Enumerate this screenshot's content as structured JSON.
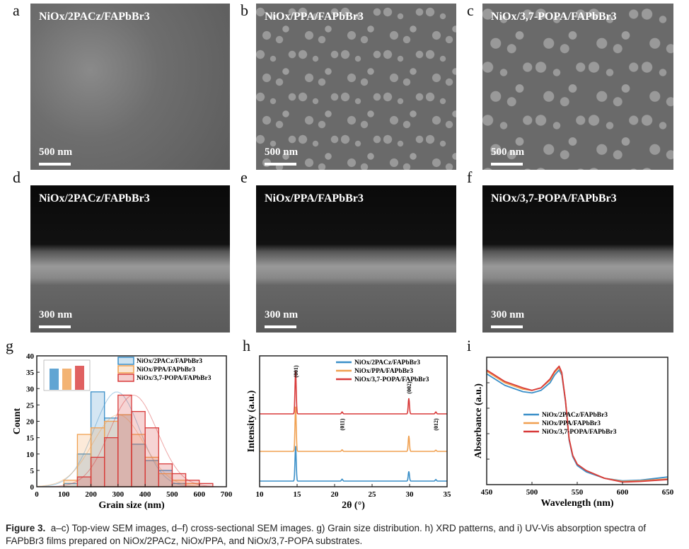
{
  "panels": {
    "a": {
      "letter": "a",
      "title": "NiOx/2PACz/FAPbBr3",
      "scale": "500 nm"
    },
    "b": {
      "letter": "b",
      "title": "NiOx/PPA/FAPbBr3",
      "scale": "500 nm"
    },
    "c": {
      "letter": "c",
      "title": "NiOx/3,7-POPA/FAPbBr3",
      "scale": "500 nm"
    },
    "d": {
      "letter": "d",
      "title": "NiOx/2PACz/FAPbBr3",
      "scale": "300 nm"
    },
    "e": {
      "letter": "e",
      "title": "NiOx/PPA/FAPbBr3",
      "scale": "300 nm"
    },
    "f": {
      "letter": "f",
      "title": "NiOx/3,7-POPA/FAPbBr3",
      "scale": "300 nm"
    },
    "g": {
      "letter": "g"
    },
    "h": {
      "letter": "h"
    },
    "i": {
      "letter": "i"
    }
  },
  "colors": {
    "blue": "#3a8fc8",
    "orange": "#f0a050",
    "red": "#d83a3a"
  },
  "chart_data": [
    {
      "type": "bar",
      "panel": "g",
      "xlabel": "Grain size (nm)",
      "ylabel": "Count",
      "xlim": [
        0,
        700
      ],
      "ylim": [
        0,
        40
      ],
      "xticks": [
        0,
        100,
        200,
        300,
        400,
        500,
        600,
        700
      ],
      "yticks": [
        0,
        5,
        10,
        15,
        20,
        25,
        30,
        35,
        40
      ],
      "bins": [
        100,
        150,
        200,
        250,
        300,
        350,
        400,
        450,
        500,
        550,
        600
      ],
      "bin_width": 50,
      "series": [
        {
          "name": "NiOx/2PACz/FAPbBr3",
          "color": "#3a8fc8",
          "values": [
            1,
            10,
            29,
            21,
            22,
            13,
            8,
            5,
            1,
            0,
            0
          ]
        },
        {
          "name": "NiOx/PPA/FAPbBr3",
          "color": "#f0a050",
          "values": [
            2,
            16,
            18,
            20,
            22,
            16,
            9,
            4,
            2,
            1,
            0
          ]
        },
        {
          "name": "NiOx/3,7-POPA/FAPbBr3",
          "color": "#d83a3a",
          "values": [
            0,
            3,
            9,
            15,
            28,
            23,
            18,
            7,
            4,
            2,
            1
          ]
        }
      ],
      "legend": "top-right",
      "inset": "bar chart of mean grain size (three bars)"
    },
    {
      "type": "line",
      "panel": "h",
      "xlabel": "2θ (°)",
      "ylabel": "Intensity (a.u.)",
      "xlim": [
        10,
        35
      ],
      "xticks": [
        10,
        15,
        20,
        25,
        30,
        35
      ],
      "peaks": [
        {
          "label": "(001)",
          "x": 14.8
        },
        {
          "label": "(011)",
          "x": 21.0
        },
        {
          "label": "(002)",
          "x": 29.9
        },
        {
          "label": "(012)",
          "x": 33.5
        }
      ],
      "series": [
        {
          "name": "NiOx/2PACz/FAPbBr3",
          "color": "#3a8fc8",
          "offset": 0,
          "heights": [
            0.9,
            0.05,
            0.25,
            0.04
          ]
        },
        {
          "name": "NiOx/PPA/FAPbBr3",
          "color": "#f0a050",
          "offset": 1,
          "heights": [
            1.15,
            0.04,
            0.4,
            0.03
          ]
        },
        {
          "name": "NiOx/3,7-POPA/FAPbBr3",
          "color": "#d83a3a",
          "offset": 2,
          "heights": [
            1.1,
            0.05,
            0.4,
            0.05
          ]
        }
      ],
      "legend": "top-right"
    },
    {
      "type": "line",
      "panel": "i",
      "xlabel": "Wavelength (nm)",
      "ylabel": "Absorbance (a.u.)",
      "xlim": [
        450,
        650
      ],
      "ylim": [
        0,
        1
      ],
      "xticks": [
        450,
        500,
        550,
        600,
        650
      ],
      "x": [
        450,
        470,
        490,
        500,
        510,
        520,
        525,
        530,
        533,
        537,
        541,
        545,
        550,
        560,
        580,
        600,
        620,
        650
      ],
      "series": [
        {
          "name": "NiOx/2PACz/FAPbBr3",
          "color": "#3a8fc8",
          "values": [
            0.87,
            0.78,
            0.73,
            0.72,
            0.74,
            0.8,
            0.86,
            0.9,
            0.86,
            0.65,
            0.35,
            0.22,
            0.15,
            0.1,
            0.05,
            0.03,
            0.035,
            0.06
          ]
        },
        {
          "name": "NiOx/PPA/FAPbBr3",
          "color": "#f0a050",
          "values": [
            0.89,
            0.8,
            0.75,
            0.74,
            0.76,
            0.82,
            0.88,
            0.92,
            0.87,
            0.66,
            0.36,
            0.23,
            0.16,
            0.11,
            0.05,
            0.025,
            0.03,
            0.045
          ]
        },
        {
          "name": "NiOx/3,7-POPA/FAPbBr3",
          "color": "#d83a3a",
          "values": [
            0.9,
            0.81,
            0.76,
            0.74,
            0.76,
            0.83,
            0.89,
            0.93,
            0.88,
            0.66,
            0.36,
            0.23,
            0.16,
            0.11,
            0.05,
            0.02,
            0.025,
            0.04
          ]
        }
      ],
      "legend": "center"
    }
  ],
  "caption": {
    "label": "Figure 3.",
    "text": "a–c) Top-view SEM images, d–f) cross-sectional SEM images. g) Grain size distribution. h) XRD patterns, and i) UV-Vis absorption spectra of FAPbBr3 films prepared on NiOx/2PACz, NiOx/PPA, and NiOx/3,7-POPA substrates."
  }
}
